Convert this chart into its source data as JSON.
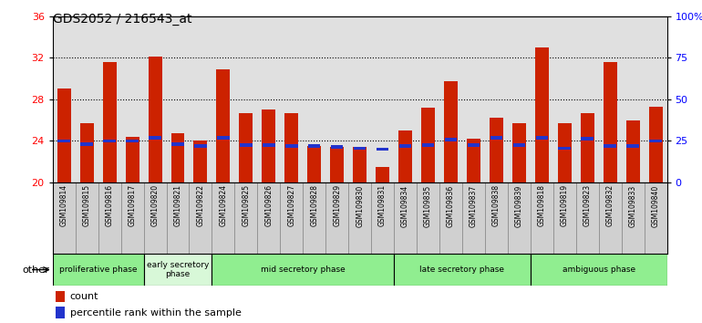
{
  "title": "GDS2052 / 216543_at",
  "samples": [
    "GSM109814",
    "GSM109815",
    "GSM109816",
    "GSM109817",
    "GSM109820",
    "GSM109821",
    "GSM109822",
    "GSM109824",
    "GSM109825",
    "GSM109826",
    "GSM109827",
    "GSM109828",
    "GSM109829",
    "GSM109830",
    "GSM109831",
    "GSM109834",
    "GSM109835",
    "GSM109836",
    "GSM109837",
    "GSM109838",
    "GSM109839",
    "GSM109818",
    "GSM109819",
    "GSM109823",
    "GSM109832",
    "GSM109833",
    "GSM109840"
  ],
  "count_values": [
    29.0,
    25.7,
    31.6,
    24.4,
    32.1,
    24.7,
    24.0,
    30.9,
    26.7,
    27.0,
    26.7,
    23.5,
    23.4,
    23.4,
    21.5,
    25.0,
    27.2,
    29.7,
    24.2,
    26.2,
    25.7,
    33.0,
    25.7,
    26.7,
    31.6,
    26.0,
    27.3
  ],
  "percentile_values": [
    24.0,
    23.7,
    24.0,
    24.0,
    24.3,
    23.7,
    23.5,
    24.3,
    23.6,
    23.6,
    23.5,
    23.5,
    23.4,
    23.3,
    23.2,
    23.5,
    23.6,
    24.1,
    23.6,
    24.3,
    23.6,
    24.3,
    23.3,
    24.2,
    23.5,
    23.5,
    24.0
  ],
  "phases": [
    {
      "name": "proliferative phase",
      "start": 0,
      "end": 4,
      "color": "#90EE90"
    },
    {
      "name": "early secretory\nphase",
      "start": 4,
      "end": 7,
      "color": "#d8f8d8"
    },
    {
      "name": "mid secretory phase",
      "start": 7,
      "end": 15,
      "color": "#90EE90"
    },
    {
      "name": "late secretory phase",
      "start": 15,
      "end": 21,
      "color": "#90EE90"
    },
    {
      "name": "ambiguous phase",
      "start": 21,
      "end": 27,
      "color": "#90EE90"
    }
  ],
  "ylim_left": [
    20,
    36
  ],
  "ylim_right": [
    0,
    100
  ],
  "yticks_left": [
    20,
    24,
    28,
    32,
    36
  ],
  "yticks_right": [
    0,
    25,
    50,
    75,
    100
  ],
  "ytick_labels_right": [
    "0",
    "25",
    "50",
    "75",
    "100%"
  ],
  "bar_color_count": "#cc2200",
  "bar_color_percentile": "#2233cc",
  "bar_width": 0.6,
  "background_plot": "#e0e0e0",
  "background_xlabel": "#d0d0d0"
}
